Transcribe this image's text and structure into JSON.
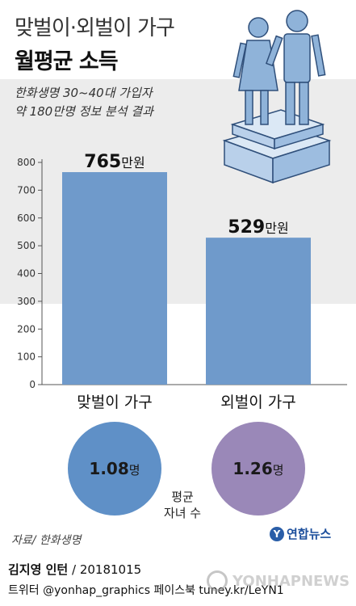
{
  "header": {
    "title_line1": "맞벌이·외벌이 가구",
    "title_line2": "월평균 소득",
    "subtitle_line1": "한화생명 30~40대 가입자",
    "subtitle_line2": "약 180만명 정보 분석 결과"
  },
  "chart_data": {
    "type": "bar",
    "title": "월평균 소득",
    "categories": [
      "맞벌이 가구",
      "외벌이 가구"
    ],
    "values": [
      765,
      529
    ],
    "value_unit": "만원",
    "ylim": [
      0,
      800
    ],
    "yticks": [
      0,
      100,
      200,
      300,
      400,
      500,
      600,
      700,
      800
    ],
    "grid": false,
    "bar_color": "#6f9acb"
  },
  "children": {
    "label": "평균 자녀 수",
    "label_line1": "평균",
    "label_line2": "자녀 수",
    "unit": "명",
    "items": [
      {
        "category": "맞벌이 가구",
        "value": "1.08",
        "color": "#5f90c7"
      },
      {
        "category": "외벌이 가구",
        "value": "1.26",
        "color": "#9a88b8"
      }
    ]
  },
  "footer": {
    "source": "자료/ 한화생명",
    "logo_text": "연합뉴스",
    "credit_name": "김지영 인턴",
    "credit_date": " / 20181015",
    "social": "트위터 @yonhap_graphics  페이스북 tuney.kr/LeYN1",
    "watermark": "YONHAPNEWS"
  },
  "colors": {
    "background": "#ffffff",
    "band": "#ececec",
    "illustration": "#8fb3d9"
  }
}
